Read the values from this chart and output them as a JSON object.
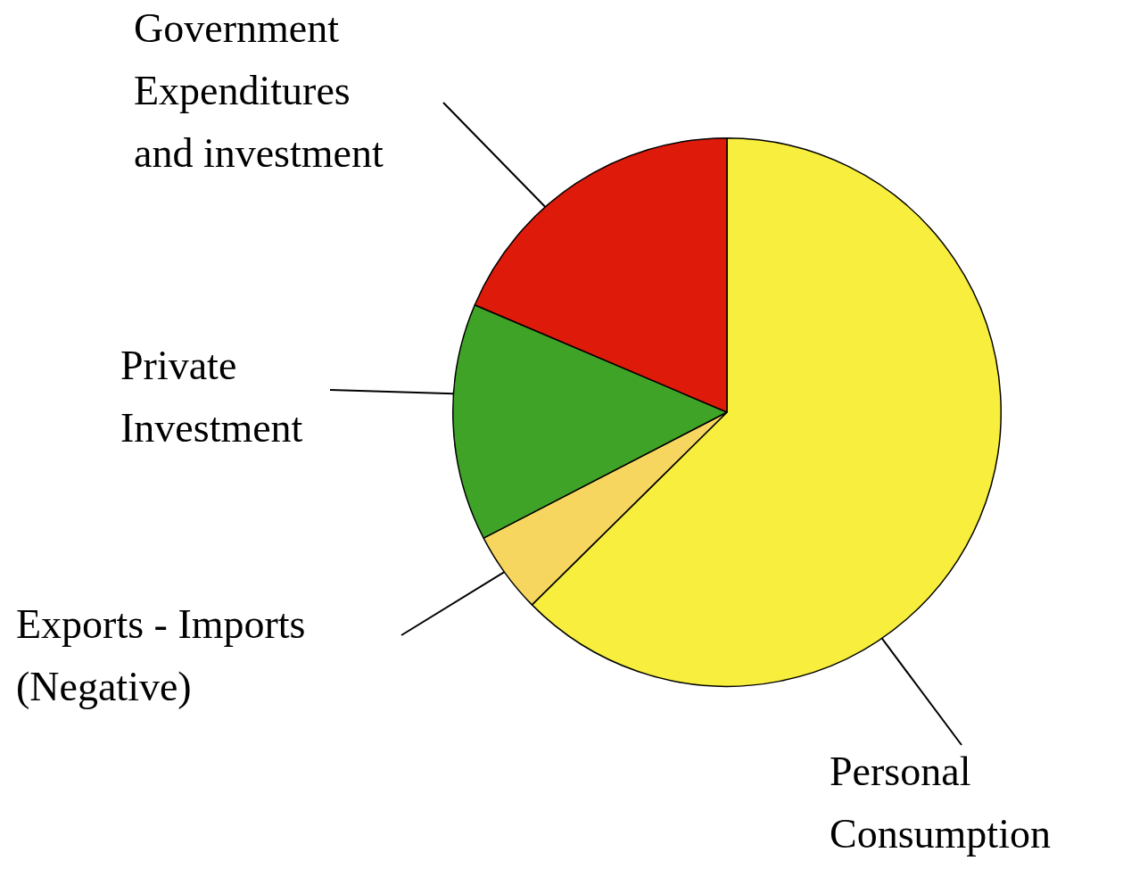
{
  "chart_data": {
    "type": "pie",
    "categories": [
      "Personal\nConsumption",
      "Exports - Imports\n(Negative)",
      "Private\nInvestment",
      "Government\nExpenditures\nand investment"
    ],
    "values": [
      62.6,
      4.8,
      14.0,
      18.6
    ],
    "colors": [
      "#f7ee3e",
      "#f7d660",
      "#3fa327",
      "#de1a0a"
    ]
  }
}
